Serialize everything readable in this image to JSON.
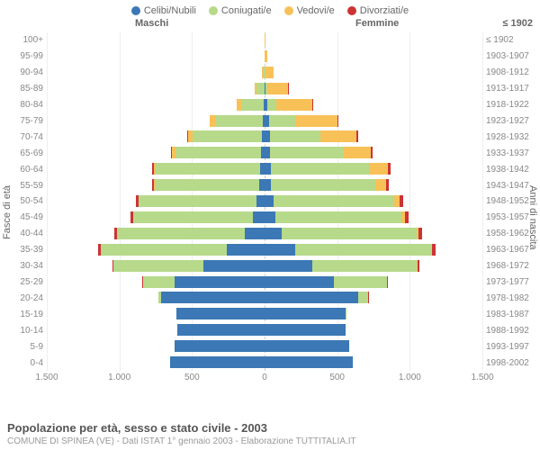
{
  "legend": [
    {
      "label": "Celibi/Nubili",
      "color": "#3b78b5"
    },
    {
      "label": "Coniugati/e",
      "color": "#b7d98a"
    },
    {
      "label": "Vedovi/e",
      "color": "#f8c158"
    },
    {
      "label": "Divorziati/e",
      "color": "#cc3333"
    }
  ],
  "headers": {
    "left": "Maschi",
    "right": "Femmine",
    "born_col": "≤ 1902"
  },
  "axis_titles": {
    "left": "Fasce di età",
    "right": "Anni di nascita"
  },
  "scale_max": 1500,
  "x_ticks_left": [
    "1.500",
    "1.000",
    "500",
    "0"
  ],
  "x_ticks_right": [
    "0",
    "500",
    "1.000",
    "1.500"
  ],
  "rows": [
    {
      "age": "100+",
      "birth": "≤ 1902",
      "m": [
        0,
        0,
        0,
        0
      ],
      "f": [
        0,
        0,
        2,
        0
      ]
    },
    {
      "age": "95-99",
      "birth": "1903-1907",
      "m": [
        0,
        0,
        3,
        0
      ],
      "f": [
        1,
        0,
        18,
        0
      ]
    },
    {
      "age": "90-94",
      "birth": "1908-1912",
      "m": [
        2,
        8,
        8,
        0
      ],
      "f": [
        2,
        3,
        55,
        0
      ]
    },
    {
      "age": "85-89",
      "birth": "1913-1917",
      "m": [
        3,
        50,
        18,
        0
      ],
      "f": [
        7,
        12,
        140,
        1
      ]
    },
    {
      "age": "80-84",
      "birth": "1918-1922",
      "m": [
        6,
        155,
        30,
        1
      ],
      "f": [
        18,
        65,
        245,
        2
      ]
    },
    {
      "age": "75-79",
      "birth": "1923-1927",
      "m": [
        12,
        330,
        35,
        2
      ],
      "f": [
        28,
        185,
        290,
        5
      ]
    },
    {
      "age": "70-74",
      "birth": "1928-1932",
      "m": [
        18,
        480,
        32,
        5
      ],
      "f": [
        35,
        350,
        250,
        8
      ]
    },
    {
      "age": "65-69",
      "birth": "1933-1937",
      "m": [
        22,
        590,
        25,
        8
      ],
      "f": [
        38,
        510,
        185,
        12
      ]
    },
    {
      "age": "60-64",
      "birth": "1938-1942",
      "m": [
        28,
        720,
        15,
        10
      ],
      "f": [
        42,
        680,
        130,
        15
      ]
    },
    {
      "age": "55-59",
      "birth": "1943-1947",
      "m": [
        35,
        720,
        8,
        12
      ],
      "f": [
        45,
        720,
        70,
        18
      ]
    },
    {
      "age": "50-54",
      "birth": "1948-1952",
      "m": [
        55,
        810,
        5,
        15
      ],
      "f": [
        60,
        830,
        40,
        22
      ]
    },
    {
      "age": "45-49",
      "birth": "1953-1957",
      "m": [
        80,
        820,
        3,
        18
      ],
      "f": [
        75,
        870,
        20,
        25
      ]
    },
    {
      "age": "40-44",
      "birth": "1958-1962",
      "m": [
        135,
        880,
        2,
        18
      ],
      "f": [
        120,
        930,
        10,
        25
      ]
    },
    {
      "age": "35-39",
      "birth": "1963-1967",
      "m": [
        260,
        870,
        1,
        15
      ],
      "f": [
        210,
        940,
        5,
        20
      ]
    },
    {
      "age": "30-34",
      "birth": "1968-1972",
      "m": [
        420,
        620,
        0,
        10
      ],
      "f": [
        330,
        720,
        3,
        15
      ]
    },
    {
      "age": "25-29",
      "birth": "1973-1977",
      "m": [
        620,
        220,
        0,
        5
      ],
      "f": [
        480,
        360,
        1,
        8
      ]
    },
    {
      "age": "20-24",
      "birth": "1978-1982",
      "m": [
        710,
        20,
        0,
        1
      ],
      "f": [
        645,
        70,
        0,
        2
      ]
    },
    {
      "age": "15-19",
      "birth": "1983-1987",
      "m": [
        610,
        0,
        0,
        0
      ],
      "f": [
        560,
        3,
        0,
        0
      ]
    },
    {
      "age": "10-14",
      "birth": "1988-1992",
      "m": [
        600,
        0,
        0,
        0
      ],
      "f": [
        555,
        0,
        0,
        0
      ]
    },
    {
      "age": "5-9",
      "birth": "1993-1997",
      "m": [
        620,
        0,
        0,
        0
      ],
      "f": [
        585,
        0,
        0,
        0
      ]
    },
    {
      "age": "0-4",
      "birth": "1998-2002",
      "m": [
        650,
        0,
        0,
        0
      ],
      "f": [
        610,
        0,
        0,
        0
      ]
    }
  ],
  "footer": {
    "title": "Popolazione per età, sesso e stato civile - 2003",
    "subtitle": "COMUNE DI SPINEA (VE) - Dati ISTAT 1° gennaio 2003 - Elaborazione TUTTITALIA.IT"
  }
}
